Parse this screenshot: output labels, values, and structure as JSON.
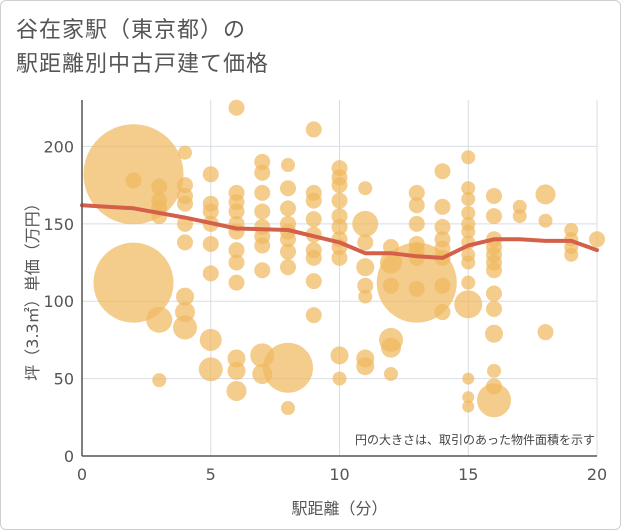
{
  "title_line1": "谷在家駅（東京都）の",
  "title_line2": "駅距離別中古戸建て価格",
  "colors": {
    "bubble": "#f0b860",
    "trend": "#d4604a",
    "grid": "#d8dde4",
    "axis": "#555555"
  },
  "chart_data": {
    "type": "scatter",
    "title": "谷在家駅（東京都）の駅距離別中古戸建て価格",
    "xlabel": "駅距離（分）",
    "ylabel": "坪（3.3㎡）単価（万円）",
    "xlim": [
      0,
      20
    ],
    "ylim": [
      0,
      230
    ],
    "x_ticks": [
      "0",
      "5",
      "10",
      "15",
      "20"
    ],
    "y_ticks": [
      "0",
      "50",
      "100",
      "150",
      "200"
    ],
    "grid": true,
    "note": "円の大きさは、取引のあった物件面積を示す",
    "points": [
      {
        "x": 2,
        "y": 182,
        "s": 50
      },
      {
        "x": 2,
        "y": 112,
        "s": 40
      },
      {
        "x": 2,
        "y": 178,
        "s": 8
      },
      {
        "x": 3,
        "y": 174,
        "s": 8
      },
      {
        "x": 3,
        "y": 165,
        "s": 8
      },
      {
        "x": 3,
        "y": 160,
        "s": 8
      },
      {
        "x": 3,
        "y": 155,
        "s": 8
      },
      {
        "x": 3,
        "y": 88,
        "s": 13
      },
      {
        "x": 3,
        "y": 49,
        "s": 7
      },
      {
        "x": 4,
        "y": 196,
        "s": 7
      },
      {
        "x": 4,
        "y": 175,
        "s": 8
      },
      {
        "x": 4,
        "y": 168,
        "s": 8
      },
      {
        "x": 4,
        "y": 163,
        "s": 8
      },
      {
        "x": 4,
        "y": 150,
        "s": 8
      },
      {
        "x": 4,
        "y": 138,
        "s": 8
      },
      {
        "x": 4,
        "y": 103,
        "s": 9
      },
      {
        "x": 4,
        "y": 93,
        "s": 10
      },
      {
        "x": 4,
        "y": 83,
        "s": 12
      },
      {
        "x": 5,
        "y": 182,
        "s": 8
      },
      {
        "x": 5,
        "y": 163,
        "s": 8
      },
      {
        "x": 5,
        "y": 158,
        "s": 8
      },
      {
        "x": 5,
        "y": 150,
        "s": 8
      },
      {
        "x": 5,
        "y": 137,
        "s": 8
      },
      {
        "x": 5,
        "y": 118,
        "s": 8
      },
      {
        "x": 5,
        "y": 75,
        "s": 11
      },
      {
        "x": 5,
        "y": 56,
        "s": 12
      },
      {
        "x": 6,
        "y": 225,
        "s": 8
      },
      {
        "x": 6,
        "y": 170,
        "s": 8
      },
      {
        "x": 6,
        "y": 164,
        "s": 8
      },
      {
        "x": 6,
        "y": 158,
        "s": 8
      },
      {
        "x": 6,
        "y": 150,
        "s": 8
      },
      {
        "x": 6,
        "y": 145,
        "s": 8
      },
      {
        "x": 6,
        "y": 133,
        "s": 8
      },
      {
        "x": 6,
        "y": 125,
        "s": 8
      },
      {
        "x": 6,
        "y": 112,
        "s": 8
      },
      {
        "x": 6,
        "y": 63,
        "s": 9
      },
      {
        "x": 6,
        "y": 55,
        "s": 9
      },
      {
        "x": 6,
        "y": 42,
        "s": 10
      },
      {
        "x": 7,
        "y": 190,
        "s": 8
      },
      {
        "x": 7,
        "y": 183,
        "s": 8
      },
      {
        "x": 7,
        "y": 170,
        "s": 8
      },
      {
        "x": 7,
        "y": 158,
        "s": 8
      },
      {
        "x": 7,
        "y": 148,
        "s": 8
      },
      {
        "x": 7,
        "y": 142,
        "s": 8
      },
      {
        "x": 7,
        "y": 136,
        "s": 8
      },
      {
        "x": 7,
        "y": 120,
        "s": 8
      },
      {
        "x": 7,
        "y": 65,
        "s": 12
      },
      {
        "x": 7,
        "y": 53,
        "s": 10
      },
      {
        "x": 8,
        "y": 188,
        "s": 7
      },
      {
        "x": 8,
        "y": 173,
        "s": 8
      },
      {
        "x": 8,
        "y": 160,
        "s": 8
      },
      {
        "x": 8,
        "y": 150,
        "s": 8
      },
      {
        "x": 8,
        "y": 145,
        "s": 8
      },
      {
        "x": 8,
        "y": 140,
        "s": 8
      },
      {
        "x": 8,
        "y": 132,
        "s": 8
      },
      {
        "x": 8,
        "y": 122,
        "s": 8
      },
      {
        "x": 8,
        "y": 57,
        "s": 25
      },
      {
        "x": 8,
        "y": 31,
        "s": 7
      },
      {
        "x": 9,
        "y": 211,
        "s": 8
      },
      {
        "x": 9,
        "y": 170,
        "s": 8
      },
      {
        "x": 9,
        "y": 165,
        "s": 8
      },
      {
        "x": 9,
        "y": 153,
        "s": 8
      },
      {
        "x": 9,
        "y": 143,
        "s": 8
      },
      {
        "x": 9,
        "y": 133,
        "s": 8
      },
      {
        "x": 9,
        "y": 128,
        "s": 8
      },
      {
        "x": 9,
        "y": 113,
        "s": 8
      },
      {
        "x": 9,
        "y": 91,
        "s": 8
      },
      {
        "x": 10,
        "y": 186,
        "s": 8
      },
      {
        "x": 10,
        "y": 180,
        "s": 8
      },
      {
        "x": 10,
        "y": 175,
        "s": 8
      },
      {
        "x": 10,
        "y": 165,
        "s": 8
      },
      {
        "x": 10,
        "y": 155,
        "s": 8
      },
      {
        "x": 10,
        "y": 148,
        "s": 8
      },
      {
        "x": 10,
        "y": 140,
        "s": 8
      },
      {
        "x": 10,
        "y": 135,
        "s": 8
      },
      {
        "x": 10,
        "y": 128,
        "s": 8
      },
      {
        "x": 10,
        "y": 65,
        "s": 9
      },
      {
        "x": 10,
        "y": 50,
        "s": 7
      },
      {
        "x": 11,
        "y": 173,
        "s": 7
      },
      {
        "x": 11,
        "y": 150,
        "s": 13
      },
      {
        "x": 11,
        "y": 138,
        "s": 8
      },
      {
        "x": 11,
        "y": 122,
        "s": 9
      },
      {
        "x": 11,
        "y": 110,
        "s": 8
      },
      {
        "x": 11,
        "y": 103,
        "s": 7
      },
      {
        "x": 11,
        "y": 63,
        "s": 9
      },
      {
        "x": 11,
        "y": 58,
        "s": 9
      },
      {
        "x": 12,
        "y": 135,
        "s": 8
      },
      {
        "x": 12,
        "y": 125,
        "s": 11
      },
      {
        "x": 12,
        "y": 110,
        "s": 8
      },
      {
        "x": 12,
        "y": 75,
        "s": 12
      },
      {
        "x": 12,
        "y": 70,
        "s": 10
      },
      {
        "x": 12,
        "y": 53,
        "s": 7
      },
      {
        "x": 13,
        "y": 170,
        "s": 8
      },
      {
        "x": 13,
        "y": 162,
        "s": 8
      },
      {
        "x": 13,
        "y": 150,
        "s": 8
      },
      {
        "x": 13,
        "y": 137,
        "s": 8
      },
      {
        "x": 13,
        "y": 133,
        "s": 8
      },
      {
        "x": 13,
        "y": 128,
        "s": 8
      },
      {
        "x": 13,
        "y": 112,
        "s": 40
      },
      {
        "x": 13,
        "y": 108,
        "s": 8
      },
      {
        "x": 14,
        "y": 184,
        "s": 8
      },
      {
        "x": 14,
        "y": 161,
        "s": 8
      },
      {
        "x": 14,
        "y": 148,
        "s": 8
      },
      {
        "x": 14,
        "y": 140,
        "s": 8
      },
      {
        "x": 14,
        "y": 134,
        "s": 8
      },
      {
        "x": 14,
        "y": 128,
        "s": 8
      },
      {
        "x": 14,
        "y": 110,
        "s": 8
      },
      {
        "x": 14,
        "y": 93,
        "s": 8
      },
      {
        "x": 15,
        "y": 193,
        "s": 7
      },
      {
        "x": 15,
        "y": 173,
        "s": 7
      },
      {
        "x": 15,
        "y": 166,
        "s": 7
      },
      {
        "x": 15,
        "y": 157,
        "s": 7
      },
      {
        "x": 15,
        "y": 150,
        "s": 7
      },
      {
        "x": 15,
        "y": 145,
        "s": 7
      },
      {
        "x": 15,
        "y": 138,
        "s": 7
      },
      {
        "x": 15,
        "y": 130,
        "s": 7
      },
      {
        "x": 15,
        "y": 125,
        "s": 7
      },
      {
        "x": 15,
        "y": 112,
        "s": 7
      },
      {
        "x": 15,
        "y": 98,
        "s": 14
      },
      {
        "x": 15,
        "y": 50,
        "s": 6
      },
      {
        "x": 15,
        "y": 38,
        "s": 6
      },
      {
        "x": 15,
        "y": 32,
        "s": 6
      },
      {
        "x": 16,
        "y": 168,
        "s": 8
      },
      {
        "x": 16,
        "y": 155,
        "s": 8
      },
      {
        "x": 16,
        "y": 140,
        "s": 8
      },
      {
        "x": 16,
        "y": 135,
        "s": 8
      },
      {
        "x": 16,
        "y": 130,
        "s": 8
      },
      {
        "x": 16,
        "y": 125,
        "s": 8
      },
      {
        "x": 16,
        "y": 120,
        "s": 8
      },
      {
        "x": 16,
        "y": 105,
        "s": 8
      },
      {
        "x": 16,
        "y": 95,
        "s": 8
      },
      {
        "x": 16,
        "y": 79,
        "s": 9
      },
      {
        "x": 16,
        "y": 55,
        "s": 7
      },
      {
        "x": 16,
        "y": 45,
        "s": 8
      },
      {
        "x": 16,
        "y": 36,
        "s": 17
      },
      {
        "x": 17,
        "y": 161,
        "s": 7
      },
      {
        "x": 17,
        "y": 155,
        "s": 7
      },
      {
        "x": 18,
        "y": 169,
        "s": 10
      },
      {
        "x": 18,
        "y": 152,
        "s": 7
      },
      {
        "x": 18,
        "y": 80,
        "s": 8
      },
      {
        "x": 19,
        "y": 146,
        "s": 7
      },
      {
        "x": 19,
        "y": 140,
        "s": 7
      },
      {
        "x": 19,
        "y": 135,
        "s": 7
      },
      {
        "x": 19,
        "y": 130,
        "s": 7
      },
      {
        "x": 20,
        "y": 140,
        "s": 8
      }
    ],
    "trend": {
      "name": "",
      "x": [
        0,
        2,
        4,
        6,
        8,
        10,
        11,
        12,
        13,
        14,
        15,
        16,
        17,
        18,
        19,
        20
      ],
      "y": [
        162,
        160,
        154,
        147,
        146,
        138,
        131,
        131,
        129,
        128,
        136,
        140,
        140,
        139,
        139,
        133
      ]
    }
  }
}
